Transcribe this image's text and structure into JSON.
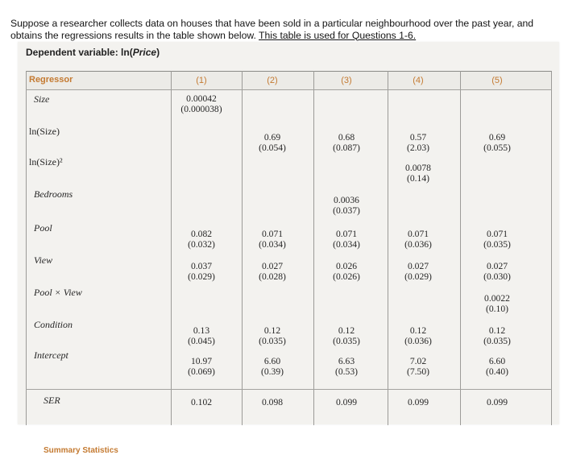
{
  "question": {
    "text": "Suppose a researcher collects data on houses that have been sold in a particular neighbourhood over the past year, and obtains the regressions results in the table shown below. ",
    "ref": "This table is used for Questions 1-6."
  },
  "dependent_label": "Dependent variable: ln(",
  "dependent_var": "Price",
  "dependent_close": ")",
  "header": {
    "regressor": "Regressor",
    "cols": [
      "(1)",
      "(2)",
      "(3)",
      "(4)",
      "(5)"
    ]
  },
  "rows": [
    {
      "label": "Size",
      "cells": [
        [
          "0.00042",
          "(0.000038)"
        ],
        null,
        null,
        null,
        null
      ]
    },
    {
      "label": "ln(Size)",
      "cells": [
        null,
        [
          "0.69",
          "(0.054)"
        ],
        [
          "0.68",
          "(0.087)"
        ],
        [
          "0.57",
          "(2.03)"
        ],
        [
          "0.69",
          "(0.055)"
        ]
      ]
    },
    {
      "label": "ln(Size)²",
      "cells": [
        null,
        null,
        null,
        [
          "0.0078",
          "(0.14)"
        ],
        null
      ]
    },
    {
      "label": "Bedrooms",
      "cells": [
        null,
        null,
        [
          "0.0036",
          "(0.037)"
        ],
        null,
        null
      ]
    },
    {
      "label": "Pool",
      "cells": [
        [
          "0.082",
          "(0.032)"
        ],
        [
          "0.071",
          "(0.034)"
        ],
        [
          "0.071",
          "(0.034)"
        ],
        [
          "0.071",
          "(0.036)"
        ],
        [
          "0.071",
          "(0.035)"
        ]
      ]
    },
    {
      "label": "View",
      "cells": [
        [
          "0.037",
          "(0.029)"
        ],
        [
          "0.027",
          "(0.028)"
        ],
        [
          "0.026",
          "(0.026)"
        ],
        [
          "0.027",
          "(0.029)"
        ],
        [
          "0.027",
          "(0.030)"
        ]
      ]
    },
    {
      "label": "Pool × View",
      "cells": [
        null,
        null,
        null,
        null,
        [
          "0.0022",
          "(0.10)"
        ]
      ]
    },
    {
      "label": "Condition",
      "cells": [
        [
          "0.13",
          "(0.045)"
        ],
        [
          "0.12",
          "(0.035)"
        ],
        [
          "0.12",
          "(0.035)"
        ],
        [
          "0.12",
          "(0.036)"
        ],
        [
          "0.12",
          "(0.035)"
        ]
      ]
    },
    {
      "label": "Intercept",
      "cells": [
        [
          "10.97",
          "(0.069)"
        ],
        [
          "6.60",
          "(0.39)"
        ],
        [
          "6.63",
          "(0.53)"
        ],
        [
          "7.02",
          "(7.50)"
        ],
        [
          "6.60",
          "(0.40)"
        ]
      ]
    }
  ],
  "summary_label": "Summary Statistics",
  "ser": {
    "label": "SER",
    "cells": [
      "0.102",
      "0.098",
      "0.099",
      "0.099",
      "0.099"
    ]
  }
}
